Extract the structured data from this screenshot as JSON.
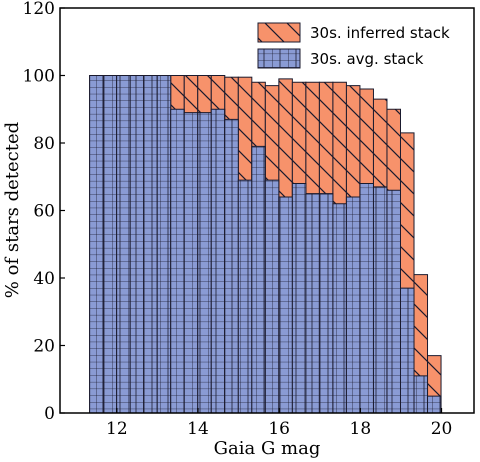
{
  "chart_data": {
    "type": "bar",
    "title": "",
    "xlabel": "Gaia G mag",
    "ylabel": "% of stars detected",
    "xlim": [
      10.6,
      20.8
    ],
    "ylim": [
      0,
      120
    ],
    "xticks": [
      12,
      14,
      16,
      18,
      20
    ],
    "yticks": [
      0,
      20,
      40,
      60,
      80,
      100,
      120
    ],
    "bin_width": 0.333,
    "bin_start": 11.33,
    "legend_position": "top-right",
    "colors": {
      "avg_fill": "#8a9bd4",
      "inferred_fill": "#f7926b",
      "edge": "#1a1a2e"
    },
    "series": [
      {
        "name": "30s. avg. stack",
        "values": [
          100,
          100,
          100,
          100,
          100,
          100,
          90,
          89,
          89,
          90,
          87,
          69,
          79,
          69,
          64,
          68,
          65,
          65,
          62,
          64,
          68,
          67,
          66,
          37,
          11,
          5
        ]
      },
      {
        "name": "30s. inferred stack",
        "values": [
          100,
          100,
          100,
          100,
          100,
          100,
          100,
          100,
          100,
          100,
          99.5,
          99.5,
          98,
          97,
          99,
          98,
          98,
          98,
          98,
          97,
          96,
          93,
          90,
          83,
          41,
          17
        ]
      }
    ]
  }
}
